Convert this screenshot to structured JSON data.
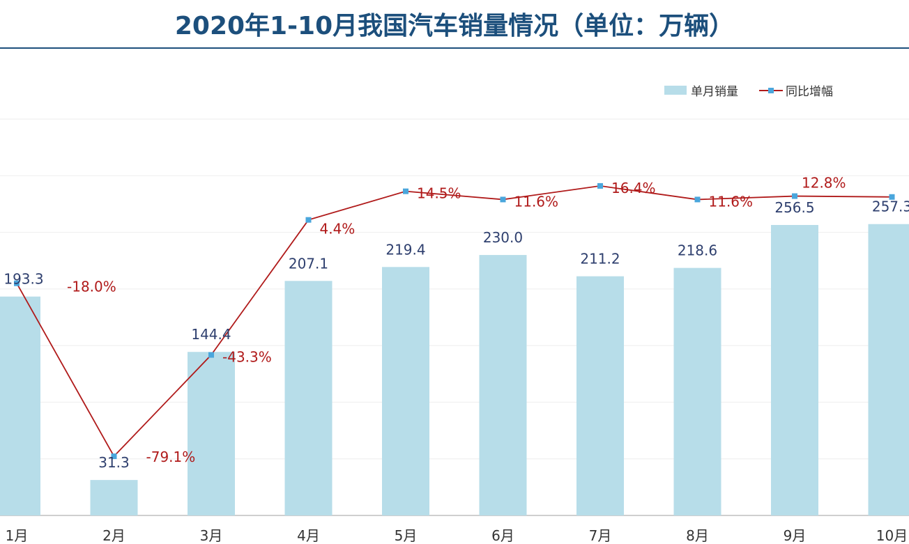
{
  "title": "2020年1-10月我国汽车销量情况（单位：万辆）",
  "chart_data": {
    "type": "bar+line",
    "title": "2020年1-10月我国汽车销量情况（单位：万辆）",
    "categories": [
      "1月",
      "2月",
      "3月",
      "4月",
      "5月",
      "6月",
      "7月",
      "8月",
      "9月",
      "10月"
    ],
    "series": [
      {
        "name": "单月销量",
        "type": "bar",
        "axis": "left",
        "color": "#b7dde9",
        "values": [
          193.3,
          31.3,
          144.4,
          207.1,
          219.4,
          230.0,
          211.2,
          218.6,
          256.5,
          257.3
        ],
        "labels": [
          "193.3",
          "31.3",
          "144.4",
          "207.1",
          "219.4",
          "230.0",
          "211.2",
          "218.6",
          "256.5",
          "257.3"
        ]
      },
      {
        "name": "同比增幅",
        "type": "line",
        "axis": "right",
        "color": "#b01a1a",
        "marker_color": "#4aa6dc",
        "values": [
          -18.0,
          -79.1,
          -43.3,
          4.4,
          14.5,
          11.6,
          16.4,
          11.6,
          12.8,
          12.5
        ],
        "labels": [
          "-18.0%",
          "-79.1%",
          "-43.3%",
          "4.4%",
          "14.5%",
          "11.6%",
          "16.4%",
          "11.6%",
          "12.8%",
          ""
        ]
      }
    ],
    "left_ylim": [
      0,
      350
    ],
    "right_ylim": [
      -100,
      40
    ],
    "grid": true,
    "legend": "top-right"
  }
}
